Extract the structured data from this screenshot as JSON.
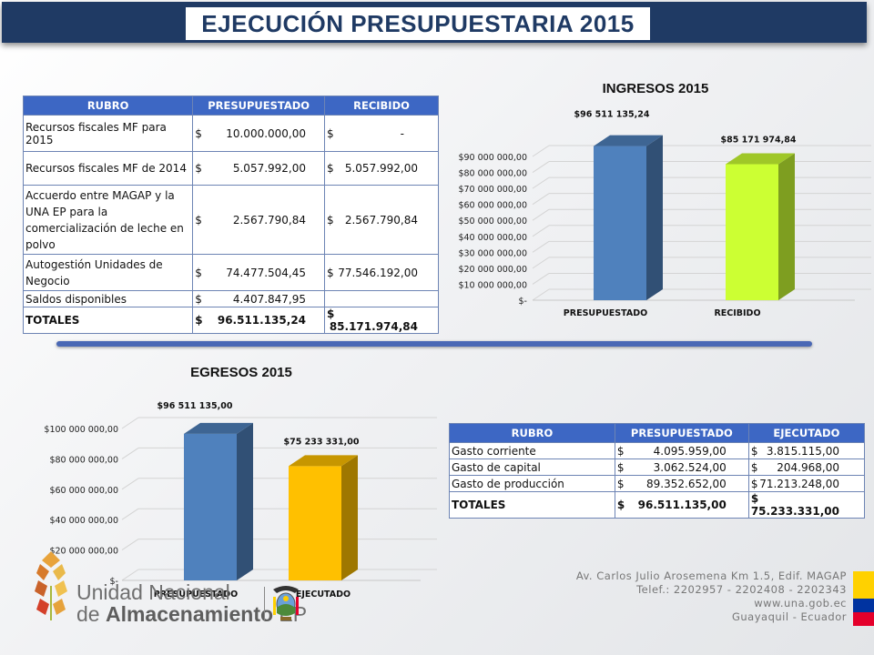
{
  "title": "EJECUCIÓN PRESUPUESTARIA 2015",
  "ingresos_table": {
    "headers": [
      "RUBRO",
      "PRESUPUESTADO",
      "RECIBIDO"
    ],
    "rows": [
      {
        "rubro": "Recursos fiscales MF para 2015",
        "presupuestado": "10.000.000,00",
        "recibido": "-"
      },
      {
        "rubro": "Recursos fiscales MF de 2014",
        "presupuestado": "5.057.992,00",
        "recibido": "5.057.992,00"
      },
      {
        "rubro": "Accuerdo entre MAGAP y la UNA EP para la comercialización de leche en polvo",
        "presupuestado": "2.567.790,84",
        "recibido": "2.567.790,84"
      },
      {
        "rubro": "Autogestión Unidades de Negocio",
        "presupuestado": "74.477.504,45",
        "recibido": "77.546.192,00"
      },
      {
        "rubro": "Saldos disponibles",
        "presupuestado": "4.407.847,95",
        "recibido": ""
      }
    ],
    "totals": {
      "label": "TOTALES",
      "presupuestado": "96.511.135,24",
      "recibido": "85.171.974,84"
    }
  },
  "egresos_table": {
    "headers": [
      "RUBRO",
      "PRESUPUESTADO",
      "EJECUTADO"
    ],
    "rows": [
      {
        "rubro": "Gasto corriente",
        "presupuestado": "4.095.959,00",
        "ejecutado": "3.815.115,00"
      },
      {
        "rubro": "Gasto de capital",
        "presupuestado": "3.062.524,00",
        "ejecutado": "204.968,00"
      },
      {
        "rubro": "Gasto de producción",
        "presupuestado": "89.352.652,00",
        "ejecutado": "71.213.248,00"
      }
    ],
    "totals": {
      "label": "TOTALES",
      "presupuestado": "96.511.135,00",
      "ejecutado": "75.233.331,00"
    }
  },
  "currency_symbol": "$",
  "chart_data": [
    {
      "type": "bar",
      "title": "INGRESOS 2015",
      "categories": [
        "PRESUPUESTADO",
        "RECIBIDO"
      ],
      "values": [
        96511135.24,
        85171974.84
      ],
      "data_labels": [
        "$96 511 135,24",
        "$85 171 974,84"
      ],
      "colors": [
        "#4f81bd",
        "#ccff33"
      ],
      "ylim": [
        0,
        90000000
      ],
      "yticks": [
        0,
        10000000,
        20000000,
        30000000,
        40000000,
        50000000,
        60000000,
        70000000,
        80000000,
        90000000
      ],
      "ytick_labels": [
        "$-",
        "$10 000 000,00",
        "$20 000 000,00",
        "$30 000 000,00",
        "$40 000 000,00",
        "$50 000 000,00",
        "$60 000 000,00",
        "$70 000 000,00",
        "$80 000 000,00",
        "$90 000 000,00"
      ],
      "grid": true
    },
    {
      "type": "bar",
      "title": "EGRESOS 2015",
      "categories": [
        "PRESUPUESTADO",
        "EJECUTADO"
      ],
      "values": [
        96511135.0,
        75233331.0
      ],
      "data_labels": [
        "$96 511 135,00",
        "$75 233 331,00"
      ],
      "colors": [
        "#4f81bd",
        "#ffc000"
      ],
      "ylim": [
        0,
        100000000
      ],
      "yticks": [
        0,
        20000000,
        40000000,
        60000000,
        80000000,
        100000000
      ],
      "ytick_labels": [
        "$-",
        "$20 000 000,00",
        "$40 000 000,00",
        "$60 000 000,00",
        "$80 000 000,00",
        "$100 000 000,00"
      ],
      "grid": true
    }
  ],
  "footer": {
    "logo_line1": "Unidad Nacional",
    "logo_line2_a": "de ",
    "logo_line2_b": "Almacenamiento",
    "logo_line2_c": " EP",
    "address": [
      "Av. Carlos Julio Arosemena Km 1.5, Edif. MAGAP",
      "Telef.: 2202957 - 2202408 - 2202343",
      "www.una.gob.ec",
      "Guayaquil - Ecuador"
    ],
    "flag_colors": [
      "#ffd100",
      "#0033a0",
      "#e4002b"
    ]
  }
}
